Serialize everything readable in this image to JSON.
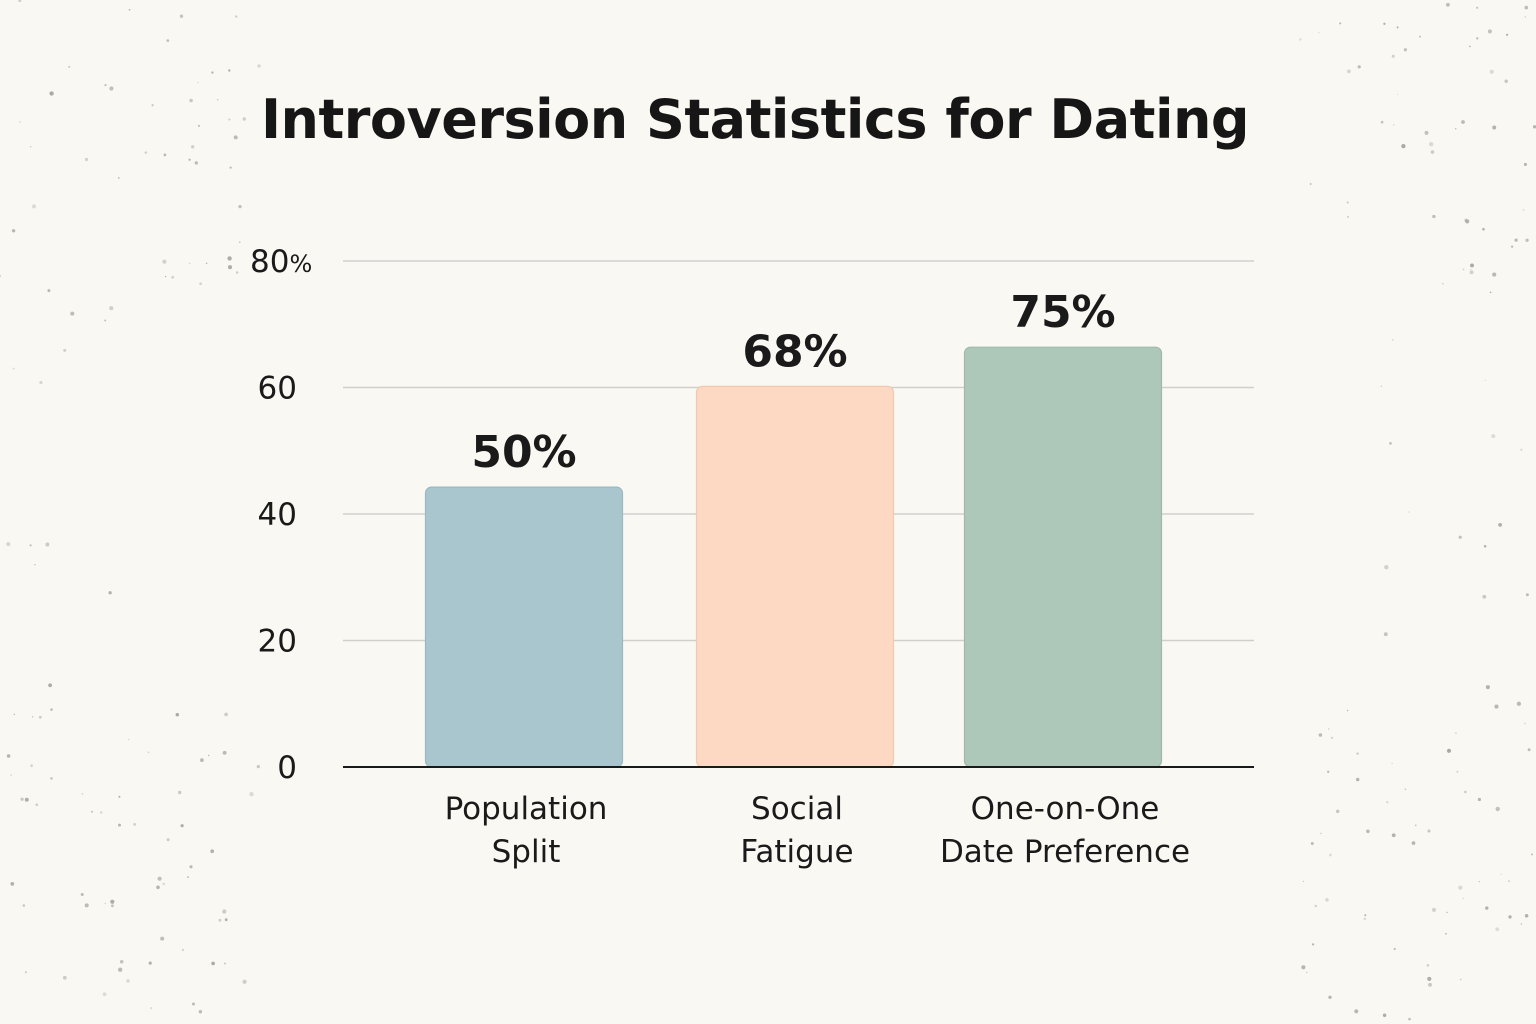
{
  "chart_data": {
    "type": "bar",
    "title": "Introversion Statistics for Dating",
    "xlabel": "",
    "ylabel": "",
    "categories": [
      [
        "Population",
        "Split"
      ],
      [
        "Social",
        "Fatigue"
      ],
      [
        "One-on-One",
        "Date Preference"
      ]
    ],
    "values": [
      50,
      68,
      75
    ],
    "value_labels": [
      "50%",
      "68%",
      "75%"
    ],
    "bar_colors": [
      "#a9c6cf",
      "#fdd8c2",
      "#adc8b8"
    ],
    "bar_edge_colors": [
      "#9bb8c2",
      "#f1c8b0",
      "#9fbaa9"
    ],
    "ylim": [
      0,
      80
    ],
    "yticks": [
      0,
      20,
      40,
      60,
      80
    ],
    "ytick_labels": [
      "0",
      "20",
      "40",
      "60",
      "80"
    ],
    "ytick_unit": "%",
    "grid": true,
    "legend": "none"
  }
}
